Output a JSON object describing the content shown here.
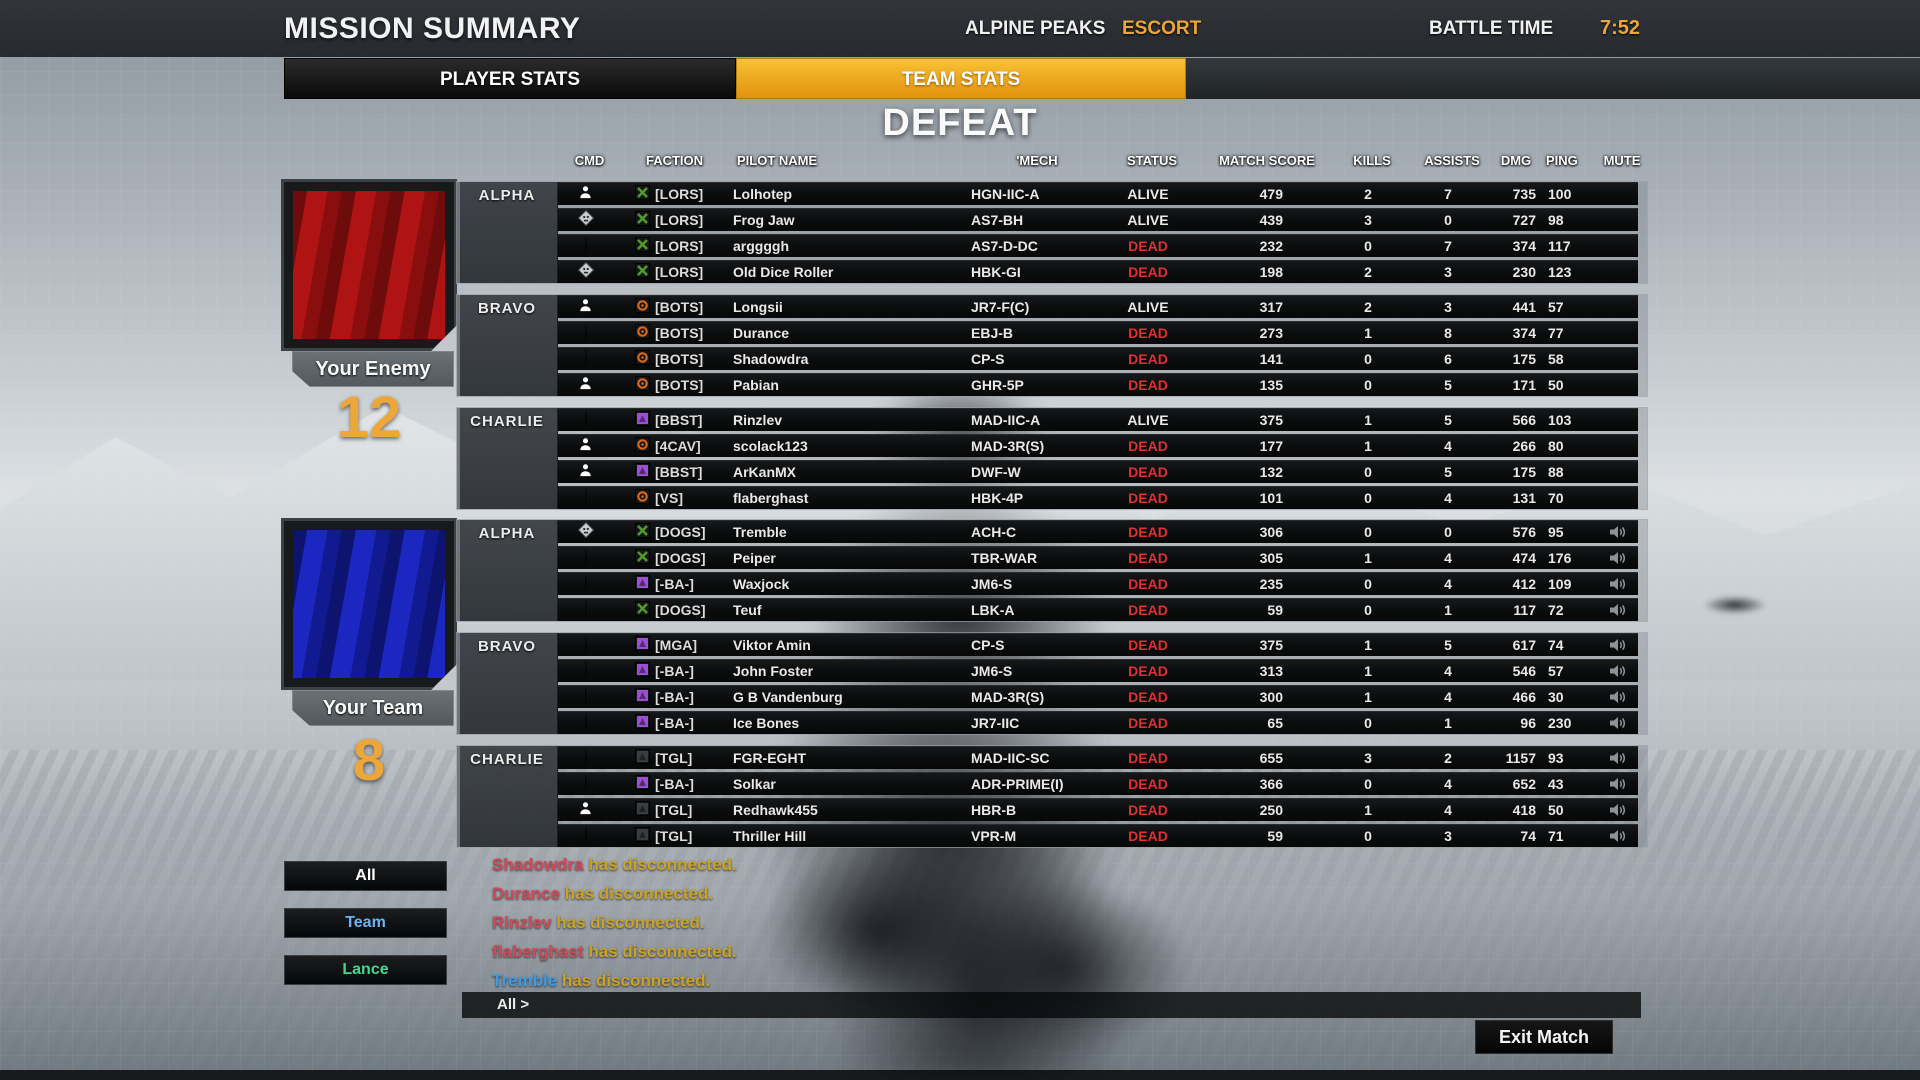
{
  "header": {
    "title": "MISSION SUMMARY",
    "map": "ALPINE PEAKS",
    "mode": "ESCORT",
    "battle_time_label": "BATTLE TIME",
    "battle_time": "7:52",
    "tabs": [
      {
        "label": "PLAYER STATS",
        "active": false
      },
      {
        "label": "TEAM STATS",
        "active": true
      }
    ]
  },
  "result": "DEFEAT",
  "accent_gold": "#eda63a",
  "status_dead_color": "#e03030",
  "table": {
    "columns": [
      "CMD",
      "FACTION",
      "PILOT NAME",
      "'MECH",
      "STATUS",
      "MATCH SCORE",
      "KILLS",
      "ASSISTS",
      "DMG",
      "PING",
      "MUTE"
    ]
  },
  "enemy": {
    "label": "Your Enemy",
    "score": "12",
    "flag_color": "#b01313",
    "lances": [
      {
        "name": "ALPHA",
        "rows": [
          {
            "rank": {
              "type": "person",
              "color": "#ffffff"
            },
            "faction": {
              "tag": "[LORS]",
              "style": "x",
              "color": "#4f9b2f"
            },
            "pilot": "Lolhotep",
            "mech": "HGN-IIC-A",
            "status": "ALIVE",
            "score": "479",
            "kills": "2",
            "assists": "7",
            "dmg": "735",
            "ping": "100",
            "mute": false
          },
          {
            "rank": {
              "type": "skull",
              "color": "#c9cdd1"
            },
            "faction": {
              "tag": "[LORS]",
              "style": "x",
              "color": "#4f9b2f"
            },
            "pilot": "Frog Jaw",
            "mech": "AS7-BH",
            "status": "ALIVE",
            "score": "439",
            "kills": "3",
            "assists": "0",
            "dmg": "727",
            "ping": "98",
            "mute": false
          },
          {
            "rank": {
              "type": "shield",
              "color": "#e08a2e"
            },
            "faction": {
              "tag": "[LORS]",
              "style": "x",
              "color": "#4f9b2f"
            },
            "pilot": "arggggh",
            "mech": "AS7-D-DC",
            "status": "DEAD",
            "score": "232",
            "kills": "0",
            "assists": "7",
            "dmg": "374",
            "ping": "117",
            "mute": false
          },
          {
            "rank": {
              "type": "skull",
              "color": "#c9cdd1"
            },
            "faction": {
              "tag": "[LORS]",
              "style": "x",
              "color": "#4f9b2f"
            },
            "pilot": "Old Dice Roller",
            "mech": "HBK-GI",
            "status": "DEAD",
            "score": "198",
            "kills": "2",
            "assists": "3",
            "dmg": "230",
            "ping": "123",
            "mute": false
          }
        ]
      },
      {
        "name": "BRAVO",
        "rows": [
          {
            "rank": {
              "type": "person",
              "color": "#ffffff"
            },
            "faction": {
              "tag": "[BOTS]",
              "style": "ring",
              "color": "#d2691e"
            },
            "pilot": "Longsii",
            "mech": "JR7-F(C)",
            "status": "ALIVE",
            "score": "317",
            "kills": "2",
            "assists": "3",
            "dmg": "441",
            "ping": "57",
            "mute": false
          },
          {
            "rank": {
              "type": "shield",
              "color": "#e08a2e"
            },
            "faction": {
              "tag": "[BOTS]",
              "style": "ring",
              "color": "#d2691e"
            },
            "pilot": "Durance",
            "mech": "EBJ-B",
            "status": "DEAD",
            "score": "273",
            "kills": "1",
            "assists": "8",
            "dmg": "374",
            "ping": "77",
            "mute": false
          },
          {
            "rank": {
              "type": "shield",
              "color": "#2ec4b6"
            },
            "faction": {
              "tag": "[BOTS]",
              "style": "ring",
              "color": "#d2691e"
            },
            "pilot": "Shadowdra",
            "mech": "CP-S",
            "status": "DEAD",
            "score": "141",
            "kills": "0",
            "assists": "6",
            "dmg": "175",
            "ping": "58",
            "mute": false
          },
          {
            "rank": {
              "type": "person",
              "color": "#ffffff"
            },
            "faction": {
              "tag": "[BOTS]",
              "style": "ring",
              "color": "#d2691e"
            },
            "pilot": "Pabian",
            "mech": "GHR-5P",
            "status": "DEAD",
            "score": "135",
            "kills": "0",
            "assists": "5",
            "dmg": "171",
            "ping": "50",
            "mute": false
          }
        ]
      },
      {
        "name": "CHARLIE",
        "rows": [
          {
            "rank": {
              "type": "shield",
              "color": "#c03434"
            },
            "faction": {
              "tag": "[BBST]",
              "style": "fill",
              "color": "#9b4fd2"
            },
            "pilot": "Rinzlev",
            "mech": "MAD-IIC-A",
            "status": "ALIVE",
            "score": "375",
            "kills": "1",
            "assists": "5",
            "dmg": "566",
            "ping": "103",
            "mute": false
          },
          {
            "rank": {
              "type": "person",
              "color": "#ffffff"
            },
            "faction": {
              "tag": "[4CAV]",
              "style": "ring",
              "color": "#d2691e"
            },
            "pilot": "scolack123",
            "mech": "MAD-3R(S)",
            "status": "DEAD",
            "score": "177",
            "kills": "1",
            "assists": "4",
            "dmg": "266",
            "ping": "80",
            "mute": false
          },
          {
            "rank": {
              "type": "person",
              "color": "#ffffff"
            },
            "faction": {
              "tag": "[BBST]",
              "style": "fill",
              "color": "#9b4fd2"
            },
            "pilot": "ArKanMX",
            "mech": "DWF-W",
            "status": "DEAD",
            "score": "132",
            "kills": "0",
            "assists": "5",
            "dmg": "175",
            "ping": "88",
            "mute": false
          },
          {
            "rank": {
              "type": "shield",
              "color": "#cc3333"
            },
            "faction": {
              "tag": "[VS]",
              "style": "ring",
              "color": "#d2691e"
            },
            "pilot": "flaberghast",
            "mech": "HBK-4P",
            "status": "DEAD",
            "score": "101",
            "kills": "0",
            "assists": "4",
            "dmg": "131",
            "ping": "70",
            "mute": false
          }
        ]
      }
    ]
  },
  "team": {
    "label": "Your Team",
    "score": "8",
    "flag_color": "#1b27c0",
    "lances": [
      {
        "name": "ALPHA",
        "rows": [
          {
            "rank": {
              "type": "skull",
              "color": "#c9cdd1"
            },
            "faction": {
              "tag": "[DOGS]",
              "style": "x",
              "color": "#4f9b2f"
            },
            "pilot": "Tremble",
            "mech": "ACH-C",
            "status": "DEAD",
            "score": "306",
            "kills": "0",
            "assists": "0",
            "dmg": "576",
            "ping": "95",
            "mute": true
          },
          {
            "rank": {
              "type": "shield",
              "color": "#e0a020"
            },
            "faction": {
              "tag": "[DOGS]",
              "style": "x",
              "color": "#4f9b2f"
            },
            "pilot": "Peiper",
            "mech": "TBR-WAR",
            "status": "DEAD",
            "score": "305",
            "kills": "1",
            "assists": "4",
            "dmg": "474",
            "ping": "176",
            "mute": true
          },
          {
            "rank": {
              "type": "shield",
              "color": "#f0c020"
            },
            "faction": {
              "tag": "[-BA-]",
              "style": "fill",
              "color": "#9b4fd2"
            },
            "pilot": "Waxjock",
            "mech": "JM6-S",
            "status": "DEAD",
            "score": "235",
            "kills": "0",
            "assists": "4",
            "dmg": "412",
            "ping": "109",
            "mute": true
          },
          {
            "rank": {
              "type": "shield",
              "color": "#3090e0"
            },
            "faction": {
              "tag": "[DOGS]",
              "style": "x",
              "color": "#4f9b2f"
            },
            "pilot": "Teuf",
            "mech": "LBK-A",
            "status": "DEAD",
            "score": "59",
            "kills": "0",
            "assists": "1",
            "dmg": "117",
            "ping": "72",
            "mute": true
          }
        ]
      },
      {
        "name": "BRAVO",
        "rows": [
          {
            "rank": {
              "type": "shield",
              "color": "#e08a2e"
            },
            "faction": {
              "tag": "[MGA]",
              "style": "fill",
              "color": "#9b4fd2"
            },
            "pilot": "Viktor Amin",
            "mech": "CP-S",
            "status": "DEAD",
            "score": "375",
            "kills": "1",
            "assists": "5",
            "dmg": "617",
            "ping": "74",
            "mute": true
          },
          {
            "rank": {
              "type": "shield",
              "color": "#f0d020"
            },
            "faction": {
              "tag": "[-BA-]",
              "style": "fill",
              "color": "#9b4fd2"
            },
            "pilot": "John Foster",
            "mech": "JM6-S",
            "status": "DEAD",
            "score": "313",
            "kills": "1",
            "assists": "4",
            "dmg": "546",
            "ping": "57",
            "mute": true
          },
          {
            "rank": {
              "type": "shield",
              "color": "#d02020"
            },
            "faction": {
              "tag": "[-BA-]",
              "style": "fill",
              "color": "#9b4fd2"
            },
            "pilot": "G B Vandenburg",
            "mech": "MAD-3R(S)",
            "status": "DEAD",
            "score": "300",
            "kills": "1",
            "assists": "4",
            "dmg": "466",
            "ping": "30",
            "mute": true
          },
          {
            "rank": {
              "type": "shield",
              "color": "#3070e0"
            },
            "faction": {
              "tag": "[-BA-]",
              "style": "fill",
              "color": "#9b4fd2"
            },
            "pilot": "Ice Bones",
            "mech": "JR7-IIC",
            "status": "DEAD",
            "score": "65",
            "kills": "0",
            "assists": "1",
            "dmg": "96",
            "ping": "230",
            "mute": true
          }
        ]
      },
      {
        "name": "CHARLIE",
        "rows": [
          {
            "rank": {
              "type": "shield",
              "color": "#30a050"
            },
            "faction": {
              "tag": "[TGL]",
              "style": "fill",
              "color": "#3a3d40"
            },
            "pilot": "FGR-EGHT",
            "mech": "MAD-IIC-SC",
            "status": "DEAD",
            "score": "655",
            "kills": "3",
            "assists": "2",
            "dmg": "1157",
            "ping": "93",
            "mute": true
          },
          {
            "rank": {
              "type": "shield",
              "color": "#e8d020"
            },
            "faction": {
              "tag": "[-BA-]",
              "style": "fill",
              "color": "#9b4fd2"
            },
            "pilot": "Solkar",
            "mech": "ADR-PRIME(I)",
            "status": "DEAD",
            "score": "366",
            "kills": "0",
            "assists": "4",
            "dmg": "652",
            "ping": "43",
            "mute": true
          },
          {
            "rank": {
              "type": "person",
              "color": "#ffffff"
            },
            "faction": {
              "tag": "[TGL]",
              "style": "fill",
              "color": "#3a3d40"
            },
            "pilot": "Redhawk455",
            "mech": "HBR-B",
            "status": "DEAD",
            "score": "250",
            "kills": "1",
            "assists": "4",
            "dmg": "418",
            "ping": "50",
            "mute": true
          },
          {
            "rank": {
              "type": "shield",
              "color": "#cc3333"
            },
            "faction": {
              "tag": "[TGL]",
              "style": "fill",
              "color": "#3a3d40"
            },
            "pilot": "Thriller Hill",
            "mech": "VPR-M",
            "status": "DEAD",
            "score": "59",
            "kills": "0",
            "assists": "3",
            "dmg": "74",
            "ping": "71",
            "mute": true
          }
        ]
      }
    ]
  },
  "chat": {
    "messages": [
      {
        "name": "Shadowdra",
        "name_color": "#d04b5a",
        "text": "has disconnected."
      },
      {
        "name": "Durance",
        "name_color": "#d04b5a",
        "text": "has disconnected."
      },
      {
        "name": "Rinzlev",
        "name_color": "#d04b5a",
        "text": "has disconnected."
      },
      {
        "name": "flaberghast",
        "name_color": "#d04b5a",
        "text": "has disconnected."
      },
      {
        "name": "Tremble",
        "name_color": "#3f9be0",
        "text": "has disconnected."
      }
    ],
    "input_label": "All >"
  },
  "filters": [
    {
      "label": "All",
      "color": "#ffffff"
    },
    {
      "label": "Team",
      "color": "#6db3f2"
    },
    {
      "label": "Lance",
      "color": "#41d98e"
    }
  ],
  "exit_label": "Exit Match"
}
